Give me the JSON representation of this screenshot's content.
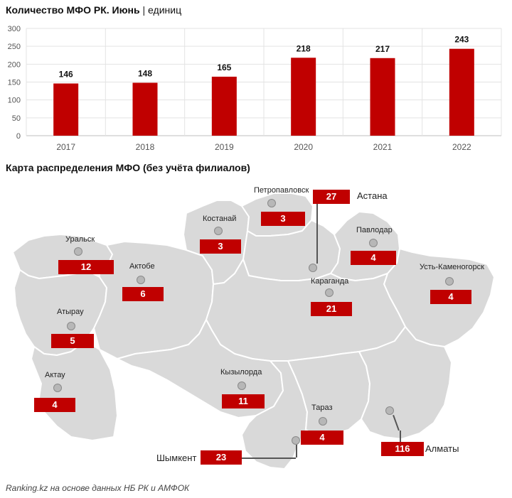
{
  "header": {
    "title": "Количество МФО РК. Июнь",
    "separator": "|",
    "unit": "единиц"
  },
  "chart_data": {
    "type": "bar",
    "categories": [
      "2017",
      "2018",
      "2019",
      "2020",
      "2021",
      "2022"
    ],
    "values": [
      146,
      148,
      165,
      218,
      217,
      243
    ],
    "ylim": [
      0,
      300
    ],
    "yticks": [
      0,
      50,
      100,
      150,
      200,
      250,
      300
    ],
    "grid": true,
    "bar_color": "#c00000"
  },
  "map": {
    "title": "Карта распределения МФО (без учёта филиалов)",
    "fill_color": "#d9d9d9",
    "badge_color": "#c00000",
    "cities": [
      {
        "name": "Уральск",
        "count": "12"
      },
      {
        "name": "Актобе",
        "count": "6"
      },
      {
        "name": "Атырау",
        "count": "5"
      },
      {
        "name": "Актау",
        "count": "4"
      },
      {
        "name": "Костанай",
        "count": "3"
      },
      {
        "name": "Петропавловск",
        "count": "3"
      },
      {
        "name": "Астана",
        "count": "27"
      },
      {
        "name": "Павлодар",
        "count": "4"
      },
      {
        "name": "Усть-Каменогорск",
        "count": "4"
      },
      {
        "name": "Караганда",
        "count": "21"
      },
      {
        "name": "Кызылорда",
        "count": "11"
      },
      {
        "name": "Тараз",
        "count": "4"
      },
      {
        "name": "Шымкент",
        "count": "23"
      },
      {
        "name": "Алматы",
        "count": "116"
      }
    ]
  },
  "source": "Ranking.kz на основе данных НБ РК и АМФОК"
}
